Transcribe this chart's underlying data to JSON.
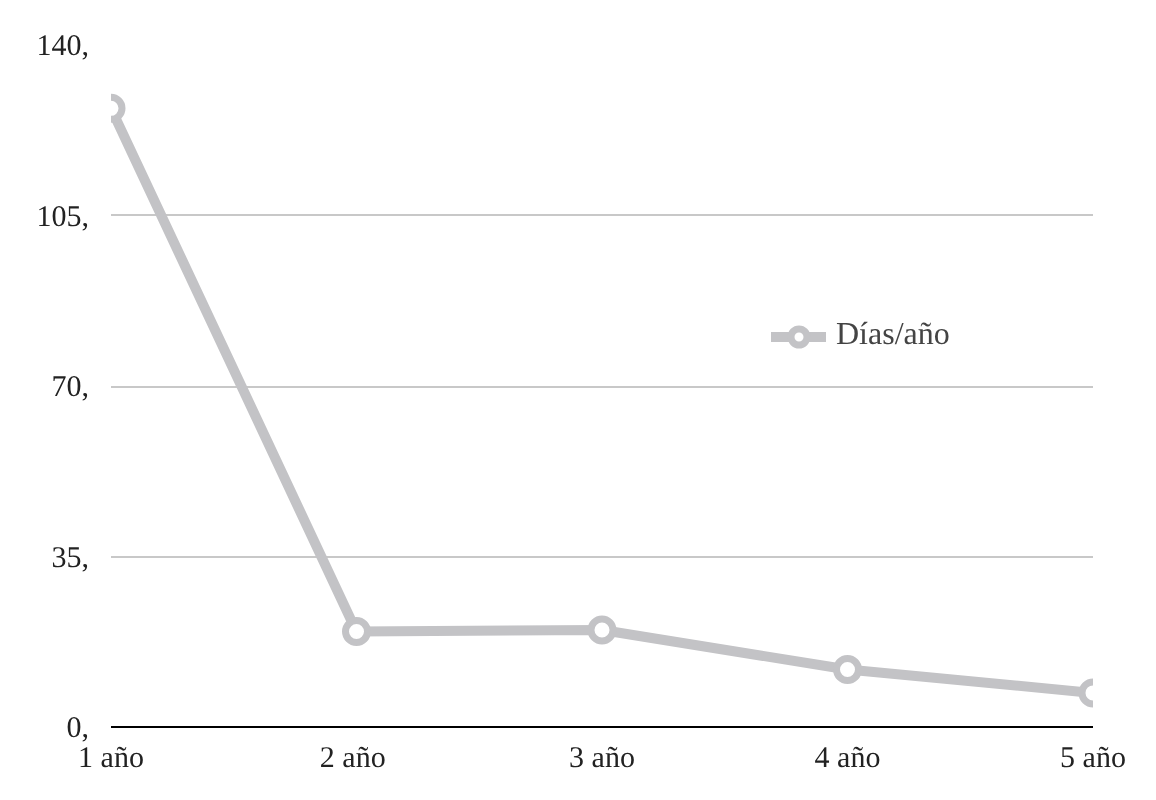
{
  "chart_data": {
    "type": "line",
    "categories": [
      "1 año",
      "2  año",
      "3 año",
      "4 año",
      "5 año"
    ],
    "series": [
      {
        "name": "Días/año",
        "color": "#c3c3c6",
        "values": [
          127,
          19.6,
          19.9,
          11.8,
          7.0
        ]
      }
    ],
    "ylim": [
      0,
      140
    ],
    "yticks": [
      {
        "value": 0,
        "label": "0,"
      },
      {
        "value": 35,
        "label": "35,"
      },
      {
        "value": 70,
        "label": "70,"
      },
      {
        "value": 105,
        "label": "105,"
      },
      {
        "value": 140,
        "label": "140,"
      }
    ],
    "grid": "y",
    "legend": "right",
    "marker": "circle",
    "line_style": "solid"
  }
}
